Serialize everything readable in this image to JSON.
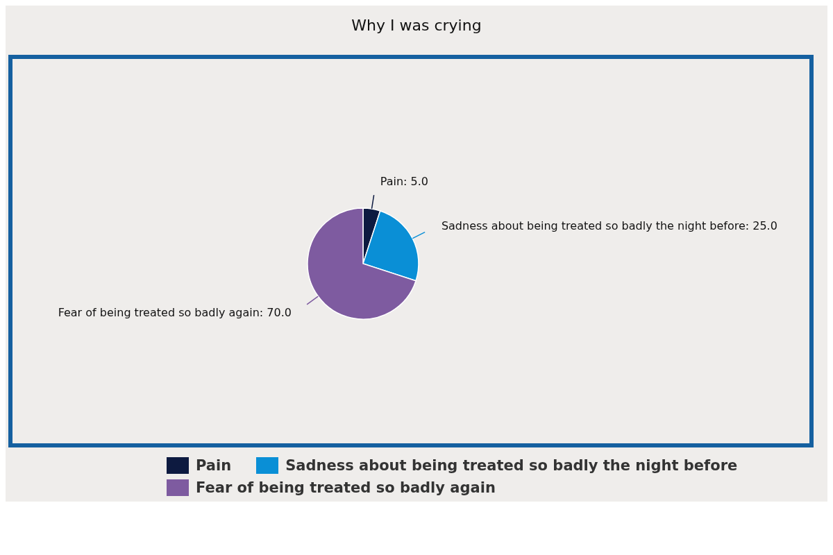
{
  "chart_data": {
    "type": "pie",
    "title": "Why I was crying",
    "categories": [
      "Pain",
      "Sadness about being treated so badly the night before",
      "Fear of being treated so badly again"
    ],
    "values": [
      5,
      25,
      70
    ],
    "value_labels": [
      "Pain: 5.0",
      "Sadness about being treated so badly the night before: 25.0",
      "Fear of being treated so badly again: 70.0"
    ],
    "colors": [
      "#0d1a40",
      "#0a8fd6",
      "#7e5ba0"
    ],
    "legend": "bottom"
  }
}
